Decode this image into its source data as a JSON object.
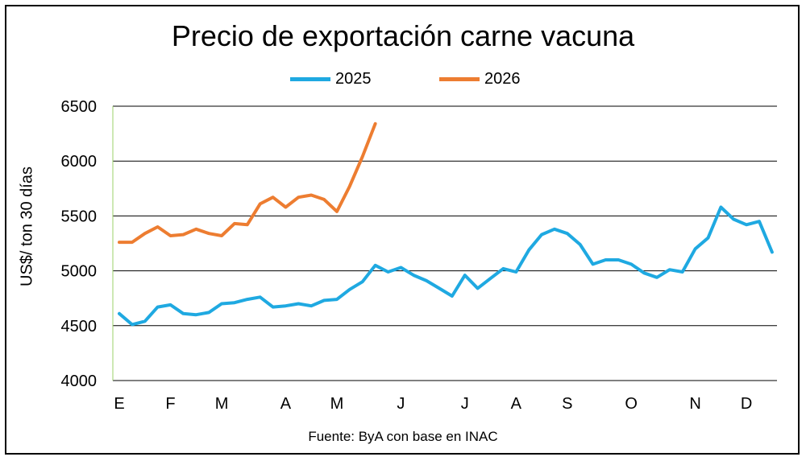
{
  "chart_data": {
    "type": "line",
    "title": "Precio de exportación carne vacuna",
    "ylabel": "US$/ ton 30 días",
    "source": "Fuente: ByA con base en INAC",
    "ylim": [
      4000,
      6500
    ],
    "yticks": [
      4000,
      4500,
      5000,
      5500,
      6000,
      6500
    ],
    "xlabels": [
      "E",
      "F",
      "M",
      "A",
      "M",
      "J",
      "J",
      "A",
      "S",
      "O",
      "N",
      "D"
    ],
    "xlabel_week_index": [
      0,
      4,
      8,
      13,
      17,
      22,
      27,
      31,
      35,
      40,
      45,
      49
    ],
    "grid": true,
    "legend_position": "top",
    "series": [
      {
        "name": "2025",
        "color": "#1fa9e1",
        "values": [
          4610,
          4510,
          4540,
          4670,
          4690,
          4610,
          4600,
          4620,
          4700,
          4710,
          4740,
          4760,
          4670,
          4680,
          4700,
          4680,
          4730,
          4740,
          4830,
          4900,
          5050,
          4990,
          5030,
          4960,
          4910,
          4840,
          4770,
          4960,
          4840,
          4930,
          5020,
          4990,
          5190,
          5330,
          5380,
          5340,
          5240,
          5060,
          5100,
          5100,
          5060,
          4980,
          4940,
          5010,
          4990,
          5200,
          5300,
          5580,
          5470,
          5420,
          5450,
          5170
        ]
      },
      {
        "name": "2026",
        "color": "#ed7d31",
        "values": [
          5260,
          5260,
          5340,
          5400,
          5320,
          5330,
          5380,
          5340,
          5320,
          5430,
          5420,
          5610,
          5670,
          5580,
          5670,
          5690,
          5650,
          5540,
          5770,
          6040,
          6340
        ]
      }
    ]
  }
}
